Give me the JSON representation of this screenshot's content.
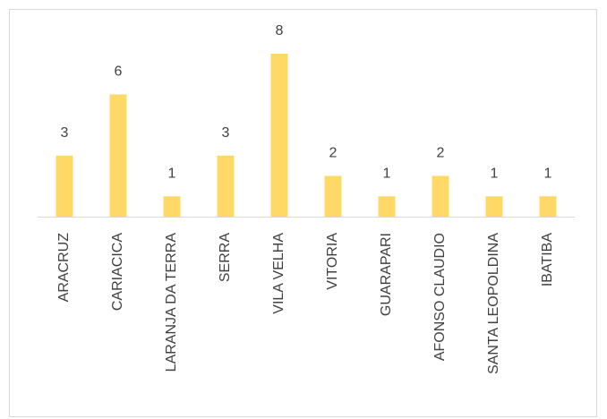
{
  "chart_data": {
    "type": "bar",
    "title": "",
    "xlabel": "",
    "ylabel": "",
    "categories": [
      "ARACRUZ",
      "CARIACICA",
      "LARANJA DA TERRA",
      "SERRA",
      "VILA VELHA",
      "VITORIA",
      "GUARAPARI",
      "AFONSO CLAUDIO",
      "SANTA LEOPOLDINA",
      "IBATIBA"
    ],
    "values": [
      3,
      6,
      1,
      3,
      8,
      2,
      1,
      2,
      1,
      1
    ],
    "ylim": [
      0,
      8
    ],
    "grid": false,
    "data_labels": true,
    "bar_color": "#ffd966",
    "axis_color": "#d9d9d9",
    "text_color": "#404040"
  }
}
